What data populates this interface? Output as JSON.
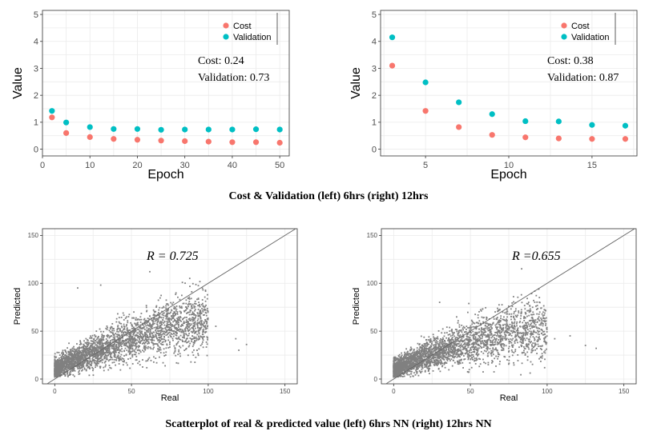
{
  "captions": {
    "top": "Cost & Validation (left) 6hrs (right) 12hrs",
    "bottom": "Scatterplot of real & predicted value (left) 6hrs NN (right) 12hrs NN"
  },
  "colors": {
    "cost": "#f8766d",
    "validation": "#00bfc4",
    "scatter": "#808080",
    "identity_line": "#666666"
  },
  "chart_data": [
    {
      "type": "scatter",
      "xlabel": "Epoch",
      "ylabel": "Value",
      "xlim": [
        0,
        52
      ],
      "ylim": [
        -0.25,
        5.15
      ],
      "xticks": [
        0,
        10,
        20,
        30,
        40,
        50
      ],
      "yticks": [
        0,
        1,
        2,
        3,
        4,
        5
      ],
      "grid": true,
      "legend_position": "top-right",
      "series": [
        {
          "name": "Cost",
          "x": [
            2,
            5,
            10,
            15,
            20,
            25,
            30,
            35,
            40,
            45,
            50
          ],
          "values": [
            1.18,
            0.6,
            0.45,
            0.38,
            0.35,
            0.32,
            0.3,
            0.28,
            0.26,
            0.26,
            0.24
          ]
        },
        {
          "name": "Validation",
          "x": [
            2,
            5,
            10,
            15,
            20,
            25,
            30,
            35,
            40,
            45,
            50
          ],
          "values": [
            1.42,
            0.99,
            0.82,
            0.75,
            0.75,
            0.72,
            0.73,
            0.73,
            0.73,
            0.74,
            0.73
          ]
        }
      ],
      "annotations": [
        "Cost: 0.24",
        "Validation: 0.73"
      ]
    },
    {
      "type": "scatter",
      "xlabel": "Epoch",
      "ylabel": "Value",
      "xlim": [
        2.3,
        17.7
      ],
      "ylim": [
        -0.25,
        5.15
      ],
      "xticks": [
        5,
        10,
        15
      ],
      "yticks": [
        0,
        1,
        2,
        3,
        4,
        5
      ],
      "grid": true,
      "legend_position": "top-right",
      "series": [
        {
          "name": "Cost",
          "x": [
            3,
            5,
            7,
            9,
            11,
            13,
            15,
            17
          ],
          "values": [
            3.1,
            1.42,
            0.82,
            0.53,
            0.44,
            0.4,
            0.38,
            0.38
          ]
        },
        {
          "name": "Validation",
          "x": [
            3,
            5,
            7,
            9,
            11,
            13,
            15,
            17
          ],
          "values": [
            4.15,
            2.48,
            1.74,
            1.3,
            1.04,
            1.03,
            0.9,
            0.87
          ]
        }
      ],
      "annotations": [
        "Cost: 0.38",
        "Validation: 0.87"
      ]
    },
    {
      "type": "scatter",
      "xlabel": "Real",
      "ylabel": "Predicted",
      "xlim": [
        -8,
        158
      ],
      "ylim": [
        -5,
        157
      ],
      "xticks": [
        0,
        50,
        100,
        150
      ],
      "yticks": [
        0,
        50,
        100,
        150
      ],
      "grid": true,
      "identity_line": true,
      "annotation": "R = 0.725",
      "point_cloud": {
        "description_points": [
          [
            2,
            10
          ],
          [
            5,
            15
          ],
          [
            10,
            18
          ],
          [
            15,
            20
          ],
          [
            20,
            24
          ],
          [
            25,
            28
          ],
          [
            30,
            30
          ],
          [
            35,
            33
          ],
          [
            40,
            36
          ],
          [
            45,
            40
          ],
          [
            50,
            42
          ],
          [
            55,
            45
          ],
          [
            60,
            48
          ],
          [
            65,
            50
          ],
          [
            70,
            52
          ],
          [
            80,
            55
          ],
          [
            90,
            58
          ],
          [
            100,
            60
          ],
          [
            110,
            45
          ],
          [
            120,
            35
          ]
        ],
        "outliers": [
          [
            62,
            112
          ],
          [
            85,
            100
          ],
          [
            88,
            105
          ],
          [
            15,
            95
          ],
          [
            30,
            98
          ],
          [
            105,
            55
          ],
          [
            118,
            42
          ],
          [
            125,
            36
          ],
          [
            120,
            30
          ]
        ]
      }
    },
    {
      "type": "scatter",
      "xlabel": "Real",
      "ylabel": "Predicted",
      "xlim": [
        -8,
        158
      ],
      "ylim": [
        -5,
        157
      ],
      "xticks": [
        0,
        50,
        100,
        150
      ],
      "yticks": [
        0,
        50,
        100,
        150
      ],
      "grid": true,
      "identity_line": true,
      "annotation": "R =0.655",
      "point_cloud": {
        "description_points": [
          [
            2,
            10
          ],
          [
            5,
            14
          ],
          [
            10,
            17
          ],
          [
            15,
            20
          ],
          [
            20,
            23
          ],
          [
            25,
            26
          ],
          [
            30,
            28
          ],
          [
            35,
            31
          ],
          [
            40,
            33
          ],
          [
            45,
            36
          ],
          [
            50,
            38
          ],
          [
            55,
            41
          ],
          [
            60,
            43
          ],
          [
            65,
            45
          ],
          [
            70,
            47
          ],
          [
            80,
            50
          ],
          [
            90,
            52
          ],
          [
            100,
            50
          ],
          [
            110,
            45
          ],
          [
            120,
            35
          ],
          [
            130,
            32
          ]
        ],
        "outliers": [
          [
            95,
            85
          ],
          [
            88,
            80
          ],
          [
            30,
            80
          ],
          [
            105,
            42
          ],
          [
            115,
            45
          ],
          [
            125,
            35
          ],
          [
            132,
            32
          ]
        ]
      }
    }
  ]
}
